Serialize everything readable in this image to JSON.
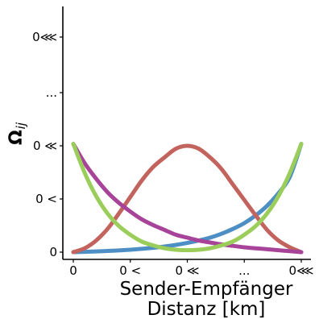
{
  "chart_data": {
    "type": "line",
    "xlabel_line1": "Sender-Empfänger",
    "xlabel_line2": "Distanz [km]",
    "ylabel_main": "Ω",
    "ylabel_sub": "ij",
    "xlim": [
      0,
      1
    ],
    "ylim": [
      0,
      1
    ],
    "x_ticks": [
      {
        "value": 0.0,
        "label": "0"
      },
      {
        "value": 0.25,
        "label": "0 <"
      },
      {
        "value": 0.5,
        "label": "0 ≪"
      },
      {
        "value": 0.75,
        "label": "..."
      },
      {
        "value": 1.0,
        "label": "0⋘"
      }
    ],
    "y_ticks": [
      {
        "value": 0.0,
        "label": "0"
      },
      {
        "value": 0.25,
        "label": "0 <"
      },
      {
        "value": 0.5,
        "label": "0 ≪"
      },
      {
        "value": 0.75,
        "label": "..."
      },
      {
        "value": 1.0,
        "label": "0⋘"
      }
    ],
    "x": [
      0,
      0.05,
      0.1,
      0.15,
      0.2,
      0.25,
      0.3,
      0.35,
      0.4,
      0.45,
      0.5,
      0.55,
      0.6,
      0.65,
      0.7,
      0.75,
      0.8,
      0.85,
      0.9,
      0.95,
      1.0
    ],
    "series": [
      {
        "color": "#4d8fc4",
        "values": [
          0.0,
          0.003,
          0.007,
          0.012,
          0.018,
          0.025,
          0.034,
          0.045,
          0.058,
          0.075,
          0.095,
          0.12,
          0.15,
          0.19,
          0.24,
          0.3,
          0.38,
          0.48,
          0.61,
          0.78,
          1.12
        ]
      },
      {
        "color": "#c2635d",
        "values": [
          0.0,
          0.04,
          0.12,
          0.24,
          0.4,
          0.57,
          0.74,
          0.88,
          0.98,
          1.07,
          1.1,
          1.07,
          0.98,
          0.86,
          0.7,
          0.54,
          0.38,
          0.23,
          0.12,
          0.05,
          0.0
        ]
      },
      {
        "color": "#a7449a",
        "values": [
          1.12,
          0.92,
          0.76,
          0.62,
          0.51,
          0.42,
          0.34,
          0.28,
          0.23,
          0.18,
          0.15,
          0.12,
          0.1,
          0.08,
          0.065,
          0.05,
          0.04,
          0.03,
          0.02,
          0.01,
          0.0
        ]
      },
      {
        "color": "#9acd5a",
        "values": [
          1.12,
          0.82,
          0.58,
          0.4,
          0.27,
          0.18,
          0.11,
          0.07,
          0.04,
          0.025,
          0.02,
          0.025,
          0.04,
          0.07,
          0.11,
          0.18,
          0.27,
          0.4,
          0.58,
          0.82,
          1.12
        ]
      }
    ]
  }
}
